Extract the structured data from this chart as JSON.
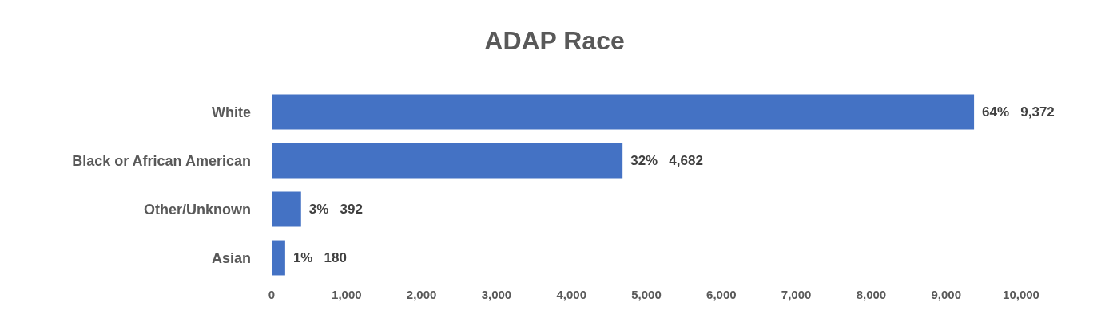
{
  "chart_data": {
    "type": "bar",
    "orientation": "horizontal",
    "title": "ADAP Race",
    "categories": [
      "White",
      "Black or African American",
      "Other/Unknown",
      "Asian"
    ],
    "values": [
      9372,
      4682,
      392,
      180
    ],
    "value_labels": [
      "64%   9,372",
      "32%   4,682",
      "3%   392",
      "1%   180"
    ],
    "color": "#4472c4",
    "xlim": [
      0,
      10000
    ],
    "xticks": [
      0,
      {
        "value": 1000,
        "label": "1,000"
      },
      {
        "value": 2000,
        "label": "2,000"
      },
      {
        "value": 3000,
        "label": "3,000"
      },
      {
        "value": 4000,
        "label": "4,000"
      },
      {
        "value": 5000,
        "label": "5,000"
      },
      {
        "value": 6000,
        "label": "6,000"
      },
      {
        "value": 7000,
        "label": "7,000"
      },
      {
        "value": 8000,
        "label": "8,000"
      },
      {
        "value": 9000,
        "label": "9,000"
      },
      {
        "value": 10000,
        "label": "10,000"
      }
    ],
    "grid": false
  }
}
